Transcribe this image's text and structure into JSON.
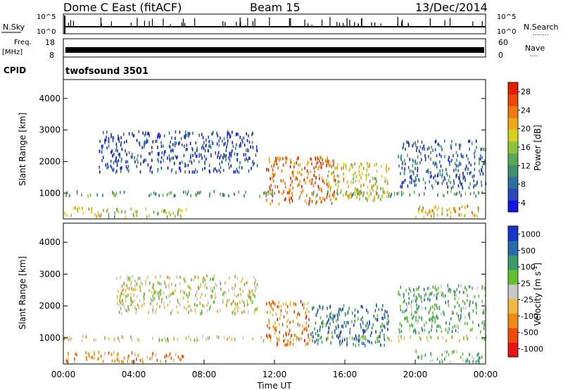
{
  "header": {
    "site": "Dome C East (fitACF)",
    "beam": "Beam 15",
    "date": "13/Dec/2014"
  },
  "panels": {
    "nsky": {
      "label": "N.Sky",
      "right_label": "N.Search",
      "right_dots": "........",
      "ticks_left": [
        "10^5",
        "10^0"
      ],
      "ticks_right": [
        "10^5",
        "10^0"
      ]
    },
    "freq": {
      "label_line1": "Freq.",
      "label_line2": "[MHz]",
      "right_label": "Nave",
      "right_dots": "....",
      "ticks_left": [
        "18",
        "8"
      ],
      "ticks_right": [
        "60",
        "0"
      ]
    },
    "cpid": {
      "label": "CPID",
      "value": "twofsound 3501"
    }
  },
  "chart_data": [
    {
      "type": "heatmap",
      "name": "power",
      "ylabel": "Slant Range [km]",
      "xlabel": "",
      "xlim": [
        0,
        24
      ],
      "ylim": [
        180,
        4600
      ],
      "yticks": [
        "1000",
        "2000",
        "3000",
        "4000"
      ],
      "xticks": [
        "00:00",
        "04:00",
        "08:00",
        "12:00",
        "16:00",
        "20:00",
        "00:00"
      ],
      "colorbar": {
        "label": "Power [dB]",
        "ticks": [
          "28",
          "24",
          "20",
          "16",
          "12",
          "8",
          "4"
        ],
        "colors": [
          "#1414e6",
          "#2a48b8",
          "#2e6e9a",
          "#3f8f6c",
          "#5aa85a",
          "#8ec43c",
          "#d6d020",
          "#f0a818",
          "#f07a10",
          "#ee4808",
          "#e01e00"
        ]
      },
      "regions": [
        {
          "t0": 0.0,
          "t1": 24.0,
          "r0": 950,
          "r1": 1100,
          "level": 0.35
        },
        {
          "t0": 0.0,
          "t1": 2.5,
          "r0": 300,
          "r1": 600,
          "level": 0.65
        },
        {
          "t0": 2.5,
          "t1": 7.0,
          "r0": 280,
          "r1": 550,
          "level": 0.45
        },
        {
          "t0": 20.0,
          "t1": 23.8,
          "r0": 280,
          "r1": 650,
          "level": 0.7
        },
        {
          "t0": 2.0,
          "t1": 11.0,
          "r0": 1700,
          "r1": 3000,
          "level": 0.15
        },
        {
          "t0": 11.5,
          "t1": 15.5,
          "r0": 700,
          "r1": 2200,
          "level": 0.8
        },
        {
          "t0": 15.0,
          "t1": 18.5,
          "r0": 800,
          "r1": 2000,
          "level": 0.6
        },
        {
          "t0": 19.0,
          "t1": 24.0,
          "r0": 1200,
          "r1": 2700,
          "level": 0.2
        }
      ]
    },
    {
      "type": "heatmap",
      "name": "velocity",
      "ylabel": "Slant Range [km]",
      "xlabel": "Time UT",
      "xlim": [
        0,
        24
      ],
      "ylim": [
        180,
        4600
      ],
      "yticks": [
        "1000",
        "2000",
        "3000",
        "4000"
      ],
      "xticks": [
        "00:00",
        "04:00",
        "08:00",
        "12:00",
        "16:00",
        "20:00",
        "00:00"
      ],
      "colorbar": {
        "label": "Velocity [m s^-1]",
        "ticks": [
          "1000",
          "500",
          "100",
          "25",
          "-25",
          "-100",
          "-500",
          "-1000"
        ],
        "colors": [
          "#e61414",
          "#ee4a10",
          "#f08a10",
          "#f0b840",
          "#c8c8c8",
          "#60c030",
          "#3a9a6a",
          "#2a6aa8",
          "#1a34c8"
        ]
      },
      "regions": [
        {
          "t0": 0.0,
          "t1": 24.0,
          "r0": 950,
          "r1": 1100,
          "level": 0.48
        },
        {
          "t0": 0.0,
          "t1": 7.0,
          "r0": 280,
          "r1": 600,
          "level": 0.28
        },
        {
          "t0": 20.0,
          "t1": 23.8,
          "r0": 280,
          "r1": 650,
          "level": 0.62
        },
        {
          "t0": 3.0,
          "t1": 11.0,
          "r0": 1800,
          "r1": 3000,
          "level": 0.48
        },
        {
          "t0": 11.5,
          "t1": 14.0,
          "r0": 800,
          "r1": 2200,
          "level": 0.25
        },
        {
          "t0": 14.0,
          "t1": 18.5,
          "r0": 800,
          "r1": 2100,
          "level": 0.8
        },
        {
          "t0": 19.0,
          "t1": 24.0,
          "r0": 1200,
          "r1": 2700,
          "level": 0.65
        }
      ]
    }
  ]
}
